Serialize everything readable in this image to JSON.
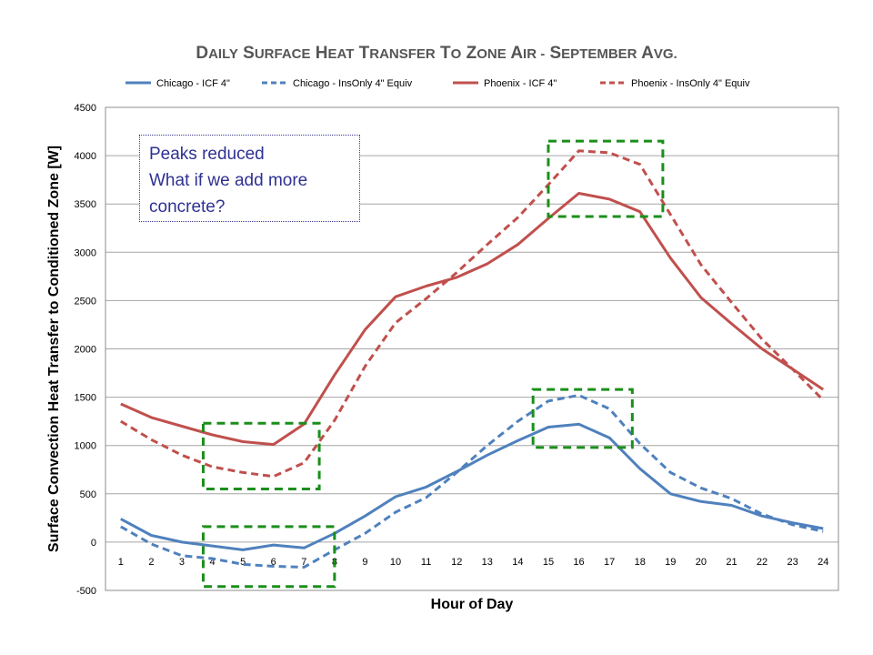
{
  "chart_data": {
    "type": "line",
    "title_parts": [
      {
        "first": "D",
        "rest": "AILY"
      },
      {
        "first": "S",
        "rest": "URFACE"
      },
      {
        "first": "H",
        "rest": "EAT"
      },
      {
        "first": "T",
        "rest": "RANSFER"
      },
      {
        "first": "T",
        "rest": "O"
      },
      {
        "first": "Z",
        "rest": "ONE"
      },
      {
        "first": "A",
        "rest": "IR -"
      },
      {
        "first": "S",
        "rest": "EPTEMBER"
      },
      {
        "first": "A",
        "rest": "VG."
      }
    ],
    "xlabel": "Hour of Day",
    "ylabel": "Surface Convection Heat Transfer to Conditioned Zone [W]",
    "x": [
      1,
      2,
      3,
      4,
      5,
      6,
      7,
      8,
      9,
      10,
      11,
      12,
      13,
      14,
      15,
      16,
      17,
      18,
      19,
      20,
      21,
      22,
      23,
      24
    ],
    "xlim": [
      0.5,
      24.5
    ],
    "ylim": [
      -500,
      4500
    ],
    "ytick_step": 500,
    "yticks": [
      "-500",
      "0",
      "500",
      "1000",
      "1500",
      "2000",
      "2500",
      "3000",
      "3500",
      "4000",
      "4500"
    ],
    "grid": true,
    "legend_position": "top",
    "series": [
      {
        "name": "Chicago - ICF 4\"",
        "color": "#4f81bd",
        "dash": "solid",
        "values": [
          240,
          70,
          0,
          -40,
          -80,
          -30,
          -60,
          90,
          270,
          470,
          570,
          730,
          900,
          1050,
          1190,
          1220,
          1080,
          760,
          500,
          420,
          380,
          270,
          200,
          140
        ]
      },
      {
        "name": "Chicago - InsOnly 4\" Equiv",
        "color": "#4f81bd",
        "dash": "dashed",
        "values": [
          160,
          -20,
          -140,
          -170,
          -230,
          -250,
          -260,
          -80,
          90,
          310,
          460,
          720,
          1000,
          1250,
          1460,
          1520,
          1380,
          1020,
          720,
          560,
          450,
          290,
          180,
          110
        ]
      },
      {
        "name": "Phoenix - ICF 4\"",
        "color": "#c0504d",
        "dash": "solid",
        "values": [
          1430,
          1290,
          1200,
          1110,
          1040,
          1010,
          1220,
          1730,
          2200,
          2540,
          2650,
          2740,
          2880,
          3080,
          3350,
          3610,
          3550,
          3420,
          2940,
          2530,
          2260,
          2000,
          1790,
          1580
        ]
      },
      {
        "name": "Phoenix - InsOnly 4\" Equiv",
        "color": "#c0504d",
        "dash": "dashed",
        "values": [
          1250,
          1060,
          900,
          780,
          720,
          680,
          820,
          1260,
          1820,
          2270,
          2520,
          2790,
          3080,
          3360,
          3700,
          4050,
          4030,
          3910,
          3390,
          2870,
          2480,
          2100,
          1790,
          1470
        ]
      }
    ],
    "highlight_boxes": [
      {
        "x_range": [
          3.7,
          7.5
        ],
        "y_range": [
          550,
          1230
        ]
      },
      {
        "x_range": [
          3.7,
          8.0
        ],
        "y_range": [
          -460,
          160
        ]
      },
      {
        "x_range": [
          14.5,
          17.75
        ],
        "y_range": [
          980,
          1580
        ]
      },
      {
        "x_range": [
          15.0,
          18.75
        ],
        "y_range": [
          3370,
          4150
        ]
      }
    ],
    "annotation": {
      "lines": [
        "Peaks reduced",
        "What if we add more",
        "concrete?"
      ]
    }
  },
  "colors": {
    "highlight": "#1a8f1a",
    "annotation_text": "#2e3192",
    "grid": "#a6a6a6"
  }
}
